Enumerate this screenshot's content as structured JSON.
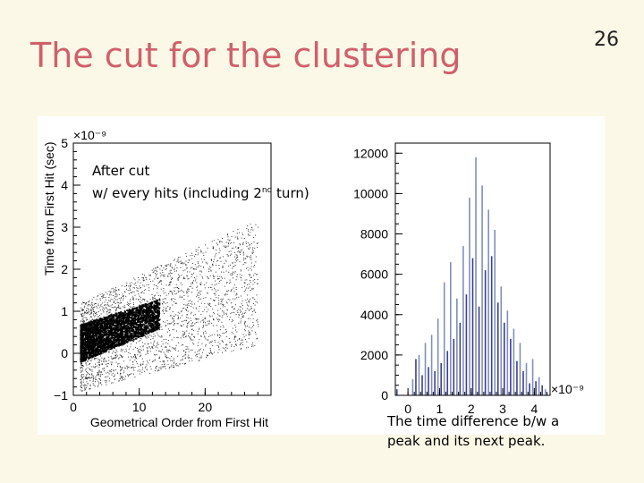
{
  "slide": {
    "title": "The cut for the clustering",
    "page_number": "26"
  },
  "annotation": {
    "line1": "After cut",
    "line2_prefix": "w/ every hits (including 2",
    "line2_sup": "nd",
    "line2_suffix": " turn)"
  },
  "caption": {
    "line1": "The time difference b/w a",
    "line2": "peak and its next peak."
  },
  "chart_data": [
    {
      "type": "scatter",
      "title": "",
      "xlabel": "Geometrical Order from First Hit",
      "ylabel": "Time from First Hit (sec)",
      "y_exponent_label": "×10⁻⁹",
      "xlim": [
        0,
        30
      ],
      "ylim": [
        -1,
        5
      ],
      "x_ticks": [
        "0",
        "10",
        "20"
      ],
      "y_ticks": [
        "−1",
        "0",
        "1",
        "2",
        "3",
        "4",
        "5"
      ],
      "grid": false,
      "description_trend": {
        "dense_band": {
          "x": [
            1,
            13
          ],
          "y_low": [
            -0.2,
            0.6
          ],
          "y_high": [
            0.7,
            1.3
          ]
        },
        "sparse_band": {
          "x": [
            1,
            28
          ],
          "y_low": [
            -0.9,
            0.2
          ],
          "y_high": [
            1.2,
            3.2
          ]
        }
      }
    },
    {
      "type": "bar",
      "title": "",
      "xlabel": "",
      "ylabel": "",
      "x_exponent_label": "×10⁻⁹",
      "xlim": [
        -0.4,
        4.5
      ],
      "ylim": [
        0,
        12500
      ],
      "x_ticks": [
        "0",
        "1",
        "2",
        "3",
        "4"
      ],
      "y_ticks": [
        "0",
        "2000",
        "4000",
        "6000",
        "8000",
        "10000",
        "12000"
      ],
      "grid": false,
      "x": [
        -0.35,
        -0.25,
        -0.15,
        -0.05,
        0.05,
        0.15,
        0.25,
        0.35,
        0.45,
        0.55,
        0.65,
        0.75,
        0.85,
        0.95,
        1.05,
        1.15,
        1.25,
        1.35,
        1.45,
        1.55,
        1.65,
        1.75,
        1.85,
        1.95,
        2.05,
        2.15,
        2.25,
        2.35,
        2.45,
        2.55,
        2.65,
        2.75,
        2.85,
        2.95,
        3.05,
        3.15,
        3.25,
        3.35,
        3.45,
        3.55,
        3.65,
        3.75,
        3.85,
        3.95,
        4.05,
        4.15,
        4.25,
        4.35
      ],
      "values": [
        300,
        0,
        0,
        0,
        0,
        800,
        1800,
        2000,
        1000,
        2600,
        1400,
        3000,
        1200,
        3800,
        1600,
        5600,
        2200,
        6600,
        2800,
        4800,
        3600,
        7400,
        5000,
        9800,
        6800,
        11800,
        4400,
        10400,
        6200,
        9200,
        6900,
        8200,
        4600,
        5400,
        3600,
        4200,
        2800,
        3300,
        1700,
        2600,
        1200,
        1600,
        600,
        1800,
        700,
        900,
        500,
        300
      ]
    }
  ]
}
